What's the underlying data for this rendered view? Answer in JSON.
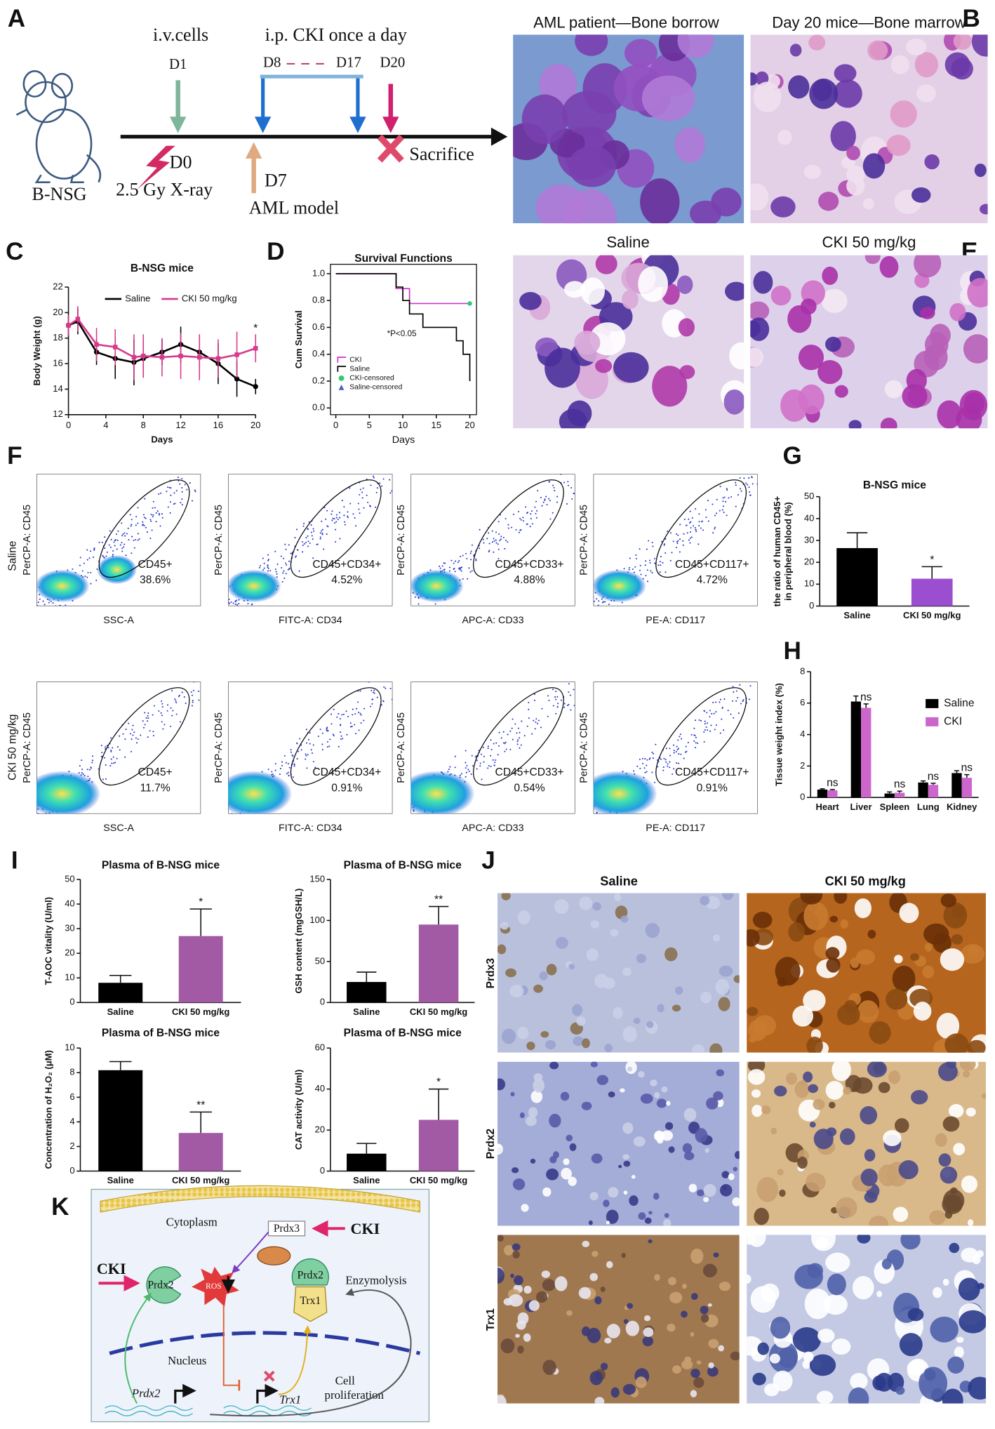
{
  "figure": {
    "panel_letters": [
      "A",
      "B",
      "C",
      "D",
      "E",
      "F",
      "G",
      "H",
      "I",
      "J",
      "K"
    ],
    "a": {
      "iv": "i.v.cells",
      "ip": "i.p. CKI once a day",
      "d1": "D1",
      "d8": "D8",
      "d17": "D17",
      "d20": "D20",
      "d0": "D0",
      "xray": "2.5 Gy X-ray",
      "d7": "D7",
      "model": "AML model",
      "sacrifice": "Sacrifice",
      "mouse": "B-NSG"
    },
    "b": [
      "AML patient—Bone borrow",
      "Day 20 mice—Bone marrow"
    ],
    "e": [
      "Saline",
      "CKI 50 mg/kg"
    ],
    "f": {
      "rows": [
        "Saline",
        "CKI 50 mg/kg"
      ],
      "y_label": "PerCP-A: CD45",
      "x_labels": [
        "SSC-A",
        "FITC-A: CD34",
        "APC-A: CD33",
        "PE-A: CD117"
      ],
      "gates": [
        "CD45+",
        "CD45+CD34+",
        "CD45+CD33+",
        "CD45+CD117+"
      ],
      "percents": [
        [
          "38.6%",
          "4.52%",
          "4.88%",
          "4.72%"
        ],
        [
          "11.7%",
          "0.91%",
          "0.54%",
          "0.91%"
        ]
      ]
    },
    "j": {
      "columns": [
        "Saline",
        "CKI 50 mg/kg"
      ],
      "rows": [
        "Prdx3",
        "Prdx2",
        "Trx1"
      ]
    },
    "k": {
      "cytoplasm": "Cytoplasm",
      "prdx3": "Prdx3",
      "cki": "CKI",
      "prdx2": "Prdx2",
      "ros": "ROS",
      "trx1": "Trx1",
      "enzymolysis": "Enzymolysis",
      "nucleus": "Nucleus",
      "cell_proliferation": [
        "Cell",
        "proliferation"
      ]
    }
  },
  "chart_data": [
    {
      "type": "line",
      "title": "B-NSG mice",
      "x_label": "Days",
      "y_label": "Body Weight (g)",
      "x": [
        0,
        1,
        3,
        5,
        7,
        8,
        10,
        12,
        14,
        16,
        18,
        20
      ],
      "series": [
        {
          "name": "Saline",
          "color": "#000000",
          "marker": "circle",
          "values": [
            19.0,
            19.3,
            16.9,
            16.4,
            16.1,
            16.4,
            16.9,
            17.5,
            16.9,
            16.0,
            14.8,
            14.2
          ],
          "errors": [
            0.8,
            1.0,
            1.0,
            1.6,
            1.8,
            1.5,
            1.0,
            1.4,
            1.3,
            1.6,
            1.4,
            0.6
          ]
        },
        {
          "name": "CKI  50 mg/kg",
          "color": "#d63a8a",
          "marker": "square",
          "values": [
            19.0,
            19.5,
            17.5,
            17.3,
            16.5,
            16.6,
            16.5,
            16.6,
            16.5,
            16.4,
            16.7,
            17.2
          ],
          "errors": [
            0.8,
            1.0,
            1.3,
            1.4,
            1.8,
            1.7,
            1.5,
            1.8,
            1.8,
            1.5,
            1.8,
            1.1
          ]
        }
      ],
      "xlim": [
        0,
        20
      ],
      "xticks": [
        0,
        4,
        8,
        12,
        16,
        20
      ],
      "ylim": [
        12,
        22
      ],
      "yticks": [
        12,
        14,
        16,
        18,
        20,
        22
      ],
      "annotation": "*",
      "legend": "top"
    },
    {
      "type": "step",
      "title": "Survival Functions",
      "x_label": "Days",
      "y_label": "Cum Survival",
      "series": [
        {
          "name": "CKI",
          "color": "#cc33cc",
          "style": "step",
          "x": [
            0,
            9,
            11,
            20
          ],
          "values": [
            1,
            0.889,
            0.778,
            0.778
          ]
        },
        {
          "name": "Saline",
          "color": "#000000",
          "style": "step",
          "x": [
            0,
            9,
            10,
            11,
            13,
            18,
            19,
            20
          ],
          "values": [
            1,
            0.9,
            0.8,
            0.7,
            0.6,
            0.5,
            0.4,
            0.2
          ]
        },
        {
          "name": "CKI-censored",
          "color": "#2ecc71",
          "style": "circle",
          "x": [
            20
          ],
          "values": [
            0.778
          ]
        },
        {
          "name": "Saline-censored",
          "color": "#4a5fc1",
          "style": "triangle",
          "x": [],
          "values": []
        }
      ],
      "xlim": [
        -0.8,
        21
      ],
      "xticks": [
        0,
        5,
        10,
        15,
        20
      ],
      "ylim": [
        -0.05,
        1.07
      ],
      "yticks": [
        {
          "value": 0,
          "label": "0.0"
        },
        0.2,
        0.4,
        0.6,
        0.8,
        {
          "value": 1,
          "label": "1.0"
        }
      ],
      "annotation": "*P<0.05",
      "legend": "lower left"
    },
    {
      "type": "bar",
      "title": "B-NSG mice",
      "y_label": [
        "the ratio of human CD45+",
        "in peripheral blood  (%)"
      ],
      "categories": [
        "Saline",
        "CKI  50 mg/kg"
      ],
      "values": [
        26.5,
        12.5
      ],
      "errors": [
        7,
        5.5
      ],
      "colors": [
        "#000000",
        "#9b4fd0"
      ],
      "ylim": [
        0,
        50
      ],
      "yticks": [
        0,
        10,
        20,
        30,
        40,
        50
      ],
      "annotations": [
        null,
        "*"
      ]
    },
    {
      "type": "bar",
      "y_label": "Tissue weight index (%)",
      "categories": [
        "Heart",
        "Liver",
        "Spleen",
        "Lung",
        "Kidney"
      ],
      "series": [
        {
          "name": "Saline",
          "color": "#000000",
          "values": [
            0.5,
            6.1,
            0.25,
            0.95,
            1.55
          ],
          "errors": [
            0.05,
            0.35,
            0.1,
            0.1,
            0.15
          ]
        },
        {
          "name": "CKI",
          "color": "#cc66cc",
          "values": [
            0.45,
            5.7,
            0.3,
            0.8,
            1.25
          ],
          "errors": [
            0.05,
            0.25,
            0.1,
            0.1,
            0.2
          ]
        }
      ],
      "ylim": [
        0,
        8
      ],
      "yticks": [
        0,
        2,
        4,
        6,
        8
      ],
      "annotations": [
        "ns",
        "ns",
        "ns",
        "ns",
        "ns"
      ],
      "legend": "upper right"
    },
    {
      "type": "bar",
      "title": "Plasma of B-NSG mice",
      "y_label": "T-AOC vitality (U/ml)",
      "categories": [
        "Saline",
        "CKI  50 mg/kg"
      ],
      "values": [
        8,
        27
      ],
      "errors": [
        3,
        11
      ],
      "colors": [
        "#000000",
        "#a35aa5"
      ],
      "ylim": [
        0,
        50
      ],
      "yticks": [
        0,
        10,
        20,
        30,
        40,
        50
      ],
      "annotations": [
        null,
        "*"
      ]
    },
    {
      "type": "bar",
      "title": "Plasma of B-NSG mice",
      "y_label": "GSH content (mgGSH/L)",
      "categories": [
        "Saline",
        "CKI  50 mg/kg"
      ],
      "values": [
        25,
        95
      ],
      "errors": [
        12,
        22
      ],
      "colors": [
        "#000000",
        "#a35aa5"
      ],
      "ylim": [
        0,
        150
      ],
      "yticks": [
        0,
        50,
        100,
        150
      ],
      "annotations": [
        null,
        "**"
      ]
    },
    {
      "type": "bar",
      "title": "Plasma of B-NSG mice",
      "y_label": "Concentration of H₂O₂ (μM)",
      "categories": [
        "Saline",
        "CKI  50 mg/kg"
      ],
      "values": [
        8.2,
        3.1
      ],
      "errors": [
        0.7,
        1.7
      ],
      "colors": [
        "#000000",
        "#a35aa5"
      ],
      "ylim": [
        0,
        10
      ],
      "yticks": [
        0,
        2,
        4,
        6,
        8,
        10
      ],
      "annotations": [
        null,
        "**"
      ]
    },
    {
      "type": "bar",
      "title": "Plasma of B-NSG mice",
      "y_label": "CAT activity (U/ml)",
      "categories": [
        "Saline",
        "CKI  50 mg/kg"
      ],
      "values": [
        8.5,
        25
      ],
      "errors": [
        5,
        15
      ],
      "colors": [
        "#000000",
        "#a35aa5"
      ],
      "ylim": [
        0,
        60
      ],
      "yticks": [
        0,
        20,
        40,
        60
      ],
      "annotations": [
        null,
        "*"
      ]
    }
  ]
}
